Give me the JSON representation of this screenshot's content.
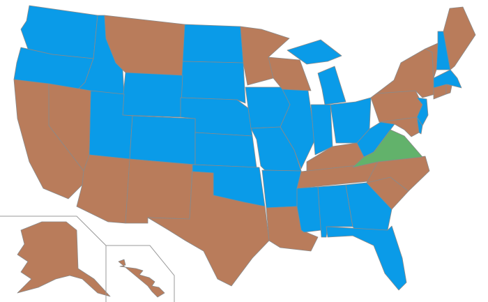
{
  "map": {
    "colors": {
      "blue": "#0A9BE8",
      "brown": "#B97C5B",
      "green": "#62B26B",
      "border": "#8a8a8a"
    },
    "states": {
      "WA": "blue",
      "OR": "blue",
      "ID": "blue",
      "WY": "blue",
      "UT": "blue",
      "CO": "blue",
      "ND": "blue",
      "SD": "blue",
      "NE": "blue",
      "KS": "blue",
      "OK": "blue",
      "IA": "blue",
      "MO": "blue",
      "AR": "blue",
      "IL": "blue",
      "IN": "blue",
      "OH": "blue",
      "MI": "blue",
      "MI-UP": "blue",
      "WV": "blue",
      "MS": "blue",
      "AL": "blue",
      "GA": "blue",
      "FL": "blue",
      "NJ": "blue",
      "DE": "blue",
      "NH": "blue",
      "MA": "blue",
      "CA": "brown",
      "NV": "brown",
      "AZ": "brown",
      "NM": "brown",
      "TX": "brown",
      "MT": "brown",
      "MN": "brown",
      "WI": "brown",
      "LA": "brown",
      "KY": "brown",
      "TN": "brown",
      "NC": "brown",
      "SC": "brown",
      "PA": "brown",
      "NY": "brown",
      "MD": "brown",
      "VT": "brown",
      "ME": "brown",
      "CT": "brown",
      "RI": "brown",
      "AK": "brown",
      "HI": "brown",
      "VA": "green"
    }
  }
}
